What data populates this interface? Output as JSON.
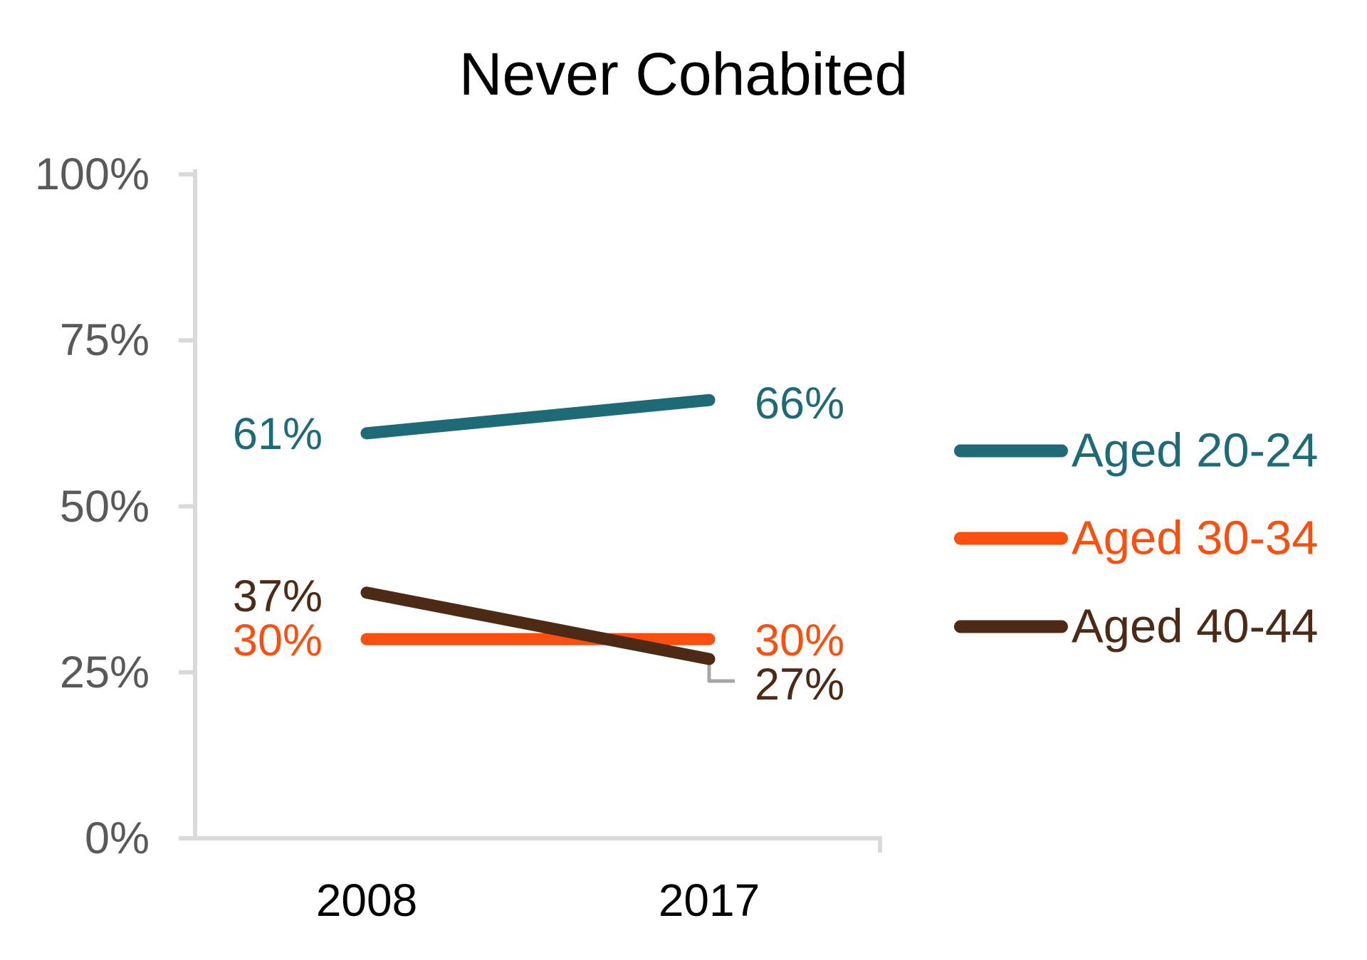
{
  "chart_data": {
    "type": "line",
    "title": "Never Cohabited",
    "x": [
      "2008",
      "2017"
    ],
    "series": [
      {
        "name": "Aged 20-24",
        "color": "#1E6B77",
        "values": [
          61,
          66
        ],
        "point_labels": [
          "61%",
          "66%"
        ]
      },
      {
        "name": "Aged 30-34",
        "color": "#FB4F0F",
        "values": [
          30,
          30
        ],
        "point_labels": [
          "30%",
          "30%"
        ]
      },
      {
        "name": "Aged 40-44",
        "color": "#4C2A16",
        "values": [
          37,
          27
        ],
        "point_labels": [
          "37%",
          "27%"
        ]
      }
    ],
    "ylim": [
      0,
      100
    ],
    "yticks": [
      {
        "value": 0,
        "label": "0%"
      },
      {
        "value": 25,
        "label": "25%"
      },
      {
        "value": 50,
        "label": "50%"
      },
      {
        "value": 75,
        "label": "75%"
      },
      {
        "value": 100,
        "label": "100%"
      }
    ],
    "grid": false,
    "legend_position": "right",
    "colors": {
      "background": "#FFFFFF",
      "axis_line": "#D9D9D9",
      "ytick_label": "#595959",
      "xtick_label": "#000000",
      "title": "#000000",
      "leader_line": "#A6A6A6"
    }
  }
}
